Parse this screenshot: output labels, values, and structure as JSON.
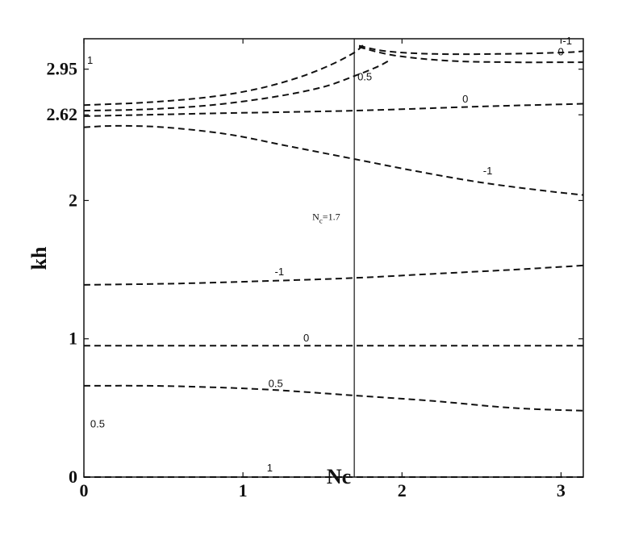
{
  "chart_data": {
    "type": "line",
    "xlabel": "Nc",
    "ylabel": "kh",
    "xlim": [
      0,
      3.14
    ],
    "ylim": [
      0,
      3.17
    ],
    "x_ticks": [
      0,
      1,
      2,
      3
    ],
    "x_tick_labels": [
      "0",
      "1",
      "2",
      "3"
    ],
    "y_ticks": [
      0,
      1,
      2,
      2.62,
      2.95
    ],
    "y_tick_labels": [
      "0",
      "1",
      "2",
      "2.62",
      "2.95"
    ],
    "grid": false,
    "annotation": {
      "base": "N",
      "sub": "c",
      "rest": "=1.7"
    },
    "vertical_line_x": 1.7,
    "series": [
      {
        "name": "1",
        "x": [
          0,
          0.5,
          1.0,
          1.5,
          2.0,
          2.5,
          3.14
        ],
        "y": [
          0.0,
          0.0,
          0.0,
          0.0,
          0.0,
          0.0,
          0.0
        ]
      },
      {
        "name": "0.5",
        "x": [
          0,
          0.4,
          0.8,
          1.2,
          1.7,
          2.2,
          2.7,
          3.14
        ],
        "y": [
          0.66,
          0.66,
          0.65,
          0.63,
          0.59,
          0.55,
          0.5,
          0.48
        ]
      },
      {
        "name": "0",
        "x": [
          0,
          0.8,
          1.5,
          2.2,
          3.14
        ],
        "y": [
          0.95,
          0.95,
          0.95,
          0.95,
          0.95
        ]
      },
      {
        "name": "-1",
        "x": [
          0,
          0.6,
          1.2,
          1.7,
          2.2,
          2.7,
          3.14
        ],
        "y": [
          1.39,
          1.4,
          1.42,
          1.44,
          1.47,
          1.5,
          1.53
        ]
      },
      {
        "name": "-1",
        "x": [
          0,
          0.2,
          0.5,
          0.9,
          1.3,
          1.7,
          2.1,
          2.5,
          2.9,
          3.14
        ],
        "y": [
          2.53,
          2.54,
          2.53,
          2.48,
          2.39,
          2.3,
          2.21,
          2.13,
          2.07,
          2.04
        ]
      },
      {
        "name": "0",
        "x": [
          0,
          0.8,
          1.7,
          2.5,
          3.14
        ],
        "y": [
          2.61,
          2.63,
          2.65,
          2.68,
          2.7
        ]
      },
      {
        "name": "0.5",
        "x": [
          0,
          0.4,
          0.8,
          1.2,
          1.5,
          1.7,
          1.85,
          1.93
        ],
        "y": [
          2.65,
          2.66,
          2.69,
          2.75,
          2.82,
          2.9,
          2.97,
          3.02
        ]
      },
      {
        "name": "1",
        "x": [
          0,
          0.4,
          0.8,
          1.1,
          1.35,
          1.55,
          1.7,
          1.76
        ],
        "y": [
          2.69,
          2.71,
          2.75,
          2.81,
          2.89,
          2.98,
          3.07,
          3.13
        ]
      },
      {
        "name": "-1",
        "x": [
          1.73,
          1.9,
          2.2,
          2.6,
          3.0,
          3.14
        ],
        "y": [
          3.12,
          3.08,
          3.06,
          3.06,
          3.07,
          3.08
        ]
      },
      {
        "name": "0",
        "x": [
          1.73,
          1.95,
          2.3,
          2.7,
          3.0,
          3.14
        ],
        "y": [
          3.11,
          3.05,
          3.01,
          3.0,
          3.0,
          3.0
        ]
      }
    ],
    "contour_labels": [
      {
        "text": "1",
        "x": 1.15,
        "y": 0.04
      },
      {
        "text": "0.5",
        "x": 0.04,
        "y": 0.36
      },
      {
        "text": "0.5",
        "x": 1.16,
        "y": 0.65
      },
      {
        "text": "0",
        "x": 1.38,
        "y": 0.98
      },
      {
        "text": "-1",
        "x": 1.2,
        "y": 1.46
      },
      {
        "text": "-1",
        "x": 2.51,
        "y": 2.19
      },
      {
        "text": "0",
        "x": 2.38,
        "y": 2.71
      },
      {
        "text": "0.5",
        "x": 1.72,
        "y": 2.87
      },
      {
        "text": "1",
        "x": 0.02,
        "y": 2.99
      },
      {
        "text": "0",
        "x": 2.98,
        "y": 3.05
      },
      {
        "text": "-1",
        "x": 3.01,
        "y": 3.13
      }
    ]
  }
}
